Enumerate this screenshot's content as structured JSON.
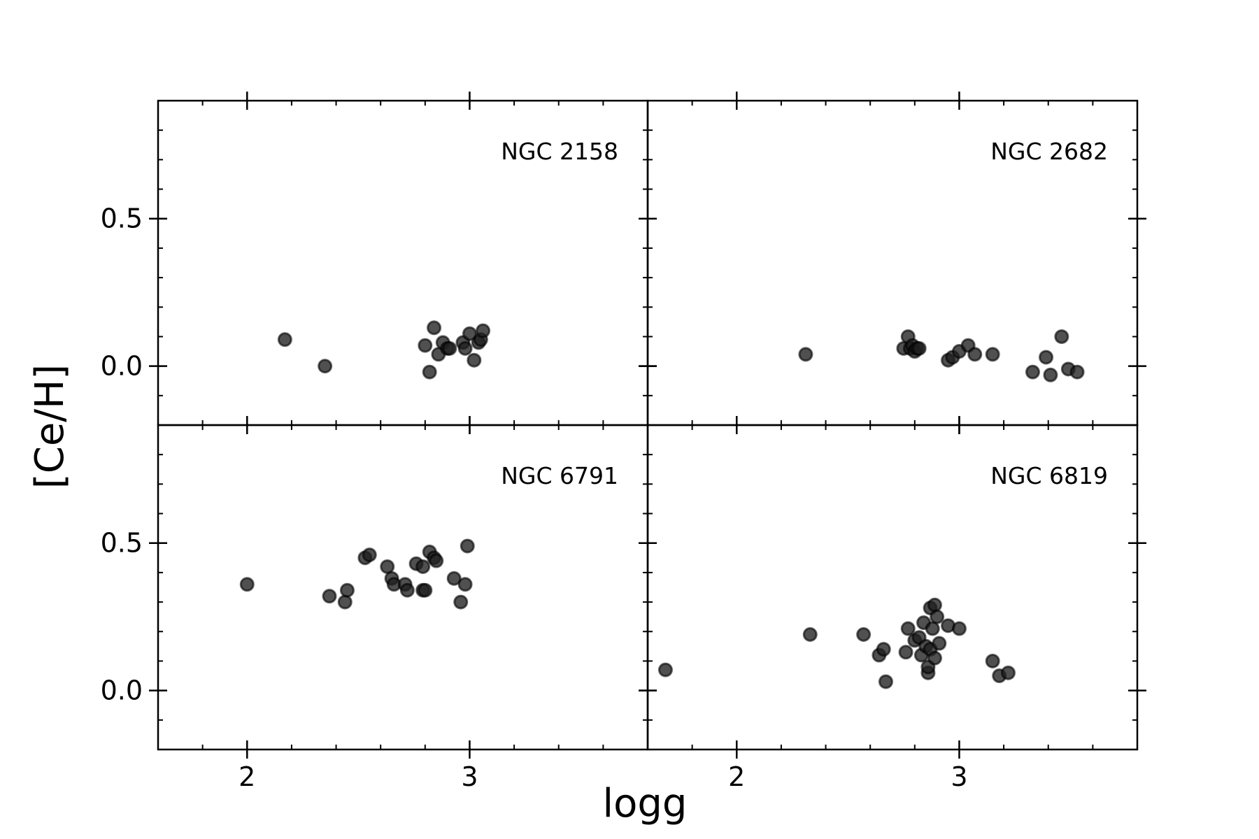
{
  "chart_data": {
    "type": "scatter",
    "xlabel": "logg",
    "ylabel": "[Ce/H]",
    "xlim": [
      1.6,
      3.8
    ],
    "ylim": [
      -0.2,
      0.9
    ],
    "xticks": [
      2,
      3
    ],
    "xtick_labels": [
      "2",
      "3"
    ],
    "yticks": [
      0.0,
      0.5
    ],
    "ytick_labels": [
      "0.0",
      "0.5"
    ],
    "grid": false,
    "marker_color": "#1f1f1f",
    "panels": [
      {
        "label": "NGC 2158",
        "points": [
          [
            2.17,
            0.09
          ],
          [
            2.35,
            0.0
          ],
          [
            2.8,
            0.07
          ],
          [
            2.82,
            -0.02
          ],
          [
            2.84,
            0.13
          ],
          [
            2.86,
            0.04
          ],
          [
            2.88,
            0.08
          ],
          [
            2.9,
            0.06
          ],
          [
            2.91,
            0.06
          ],
          [
            2.97,
            0.08
          ],
          [
            2.98,
            0.06
          ],
          [
            3.0,
            0.11
          ],
          [
            3.02,
            0.02
          ],
          [
            3.04,
            0.08
          ],
          [
            3.05,
            0.09
          ],
          [
            3.06,
            0.12
          ]
        ]
      },
      {
        "label": "NGC 2682",
        "points": [
          [
            2.31,
            0.04
          ],
          [
            2.75,
            0.06
          ],
          [
            2.77,
            0.1
          ],
          [
            2.78,
            0.06
          ],
          [
            2.79,
            0.07
          ],
          [
            2.8,
            0.05
          ],
          [
            2.81,
            0.06
          ],
          [
            2.82,
            0.06
          ],
          [
            2.95,
            0.02
          ],
          [
            2.97,
            0.03
          ],
          [
            3.0,
            0.05
          ],
          [
            3.04,
            0.07
          ],
          [
            3.07,
            0.04
          ],
          [
            3.15,
            0.04
          ],
          [
            3.33,
            -0.02
          ],
          [
            3.39,
            0.03
          ],
          [
            3.41,
            -0.03
          ],
          [
            3.46,
            0.1
          ],
          [
            3.49,
            -0.01
          ],
          [
            3.53,
            -0.02
          ]
        ]
      },
      {
        "label": "NGC 6791",
        "points": [
          [
            2.0,
            0.36
          ],
          [
            2.37,
            0.32
          ],
          [
            2.44,
            0.3
          ],
          [
            2.45,
            0.34
          ],
          [
            2.53,
            0.45
          ],
          [
            2.55,
            0.46
          ],
          [
            2.63,
            0.42
          ],
          [
            2.65,
            0.38
          ],
          [
            2.66,
            0.36
          ],
          [
            2.71,
            0.36
          ],
          [
            2.72,
            0.34
          ],
          [
            2.76,
            0.43
          ],
          [
            2.79,
            0.42
          ],
          [
            2.79,
            0.34
          ],
          [
            2.8,
            0.34
          ],
          [
            2.82,
            0.47
          ],
          [
            2.84,
            0.45
          ],
          [
            2.85,
            0.44
          ],
          [
            2.93,
            0.38
          ],
          [
            2.96,
            0.3
          ],
          [
            2.98,
            0.36
          ],
          [
            2.99,
            0.49
          ]
        ]
      },
      {
        "label": "NGC 6819",
        "points": [
          [
            1.68,
            0.07
          ],
          [
            2.33,
            0.19
          ],
          [
            2.57,
            0.19
          ],
          [
            2.64,
            0.12
          ],
          [
            2.66,
            0.14
          ],
          [
            2.67,
            0.03
          ],
          [
            2.76,
            0.13
          ],
          [
            2.77,
            0.21
          ],
          [
            2.8,
            0.17
          ],
          [
            2.82,
            0.18
          ],
          [
            2.83,
            0.12
          ],
          [
            2.84,
            0.23
          ],
          [
            2.85,
            0.15
          ],
          [
            2.86,
            0.06
          ],
          [
            2.86,
            0.08
          ],
          [
            2.87,
            0.28
          ],
          [
            2.87,
            0.14
          ],
          [
            2.88,
            0.21
          ],
          [
            2.89,
            0.11
          ],
          [
            2.89,
            0.29
          ],
          [
            2.9,
            0.25
          ],
          [
            2.91,
            0.16
          ],
          [
            2.95,
            0.22
          ],
          [
            3.0,
            0.21
          ],
          [
            3.15,
            0.1
          ],
          [
            3.18,
            0.05
          ],
          [
            3.22,
            0.06
          ]
        ]
      }
    ]
  }
}
